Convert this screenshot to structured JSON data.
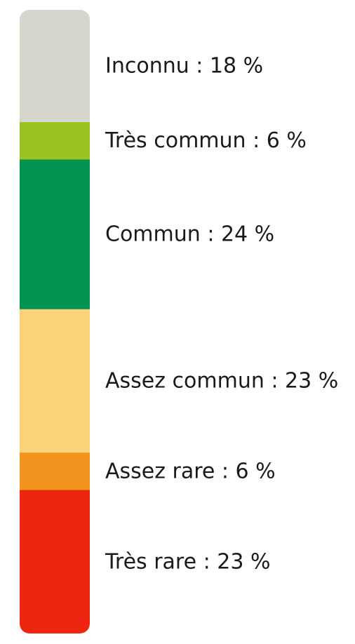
{
  "chart_data": {
    "type": "bar",
    "stacked": true,
    "orientation": "vertical",
    "unit": "%",
    "segments": [
      {
        "category": "Inconnu",
        "value": 18,
        "label": "Inconnu : 18 %",
        "color": "#d7d6cc"
      },
      {
        "category": "Très commun",
        "value": 6,
        "label": "Très commun : 6 %",
        "color": "#9cc322"
      },
      {
        "category": "Commun",
        "value": 24,
        "label": "Commun : 24 %",
        "color": "#009352"
      },
      {
        "category": "Assez commun",
        "value": 23,
        "label": "Assez commun : 23 %",
        "color": "#fcd27a"
      },
      {
        "category": "Assez rare",
        "value": 6,
        "label": "Assez rare : 6 %",
        "color": "#f3941f"
      },
      {
        "category": "Très rare",
        "value": 23,
        "label": "Très rare : 23 %",
        "color": "#ee2511"
      }
    ]
  }
}
